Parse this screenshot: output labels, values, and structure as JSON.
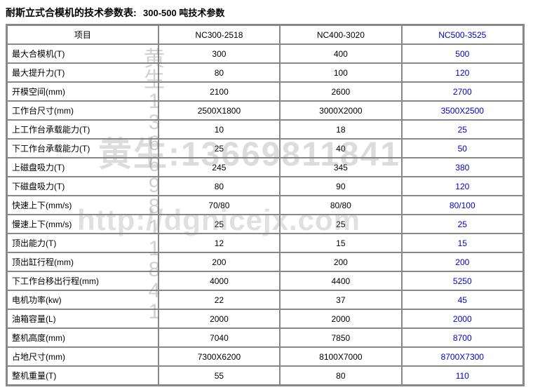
{
  "title": {
    "main": "耐斯立式合模机的技术参数表:",
    "sub": "300-500 吨技术参数"
  },
  "columns": {
    "label": "项目",
    "a": "NC300-2518",
    "b": "NC400-3020",
    "c": "NC500-3525"
  },
  "rows": [
    {
      "label": "最大合模机(T)",
      "a": "300",
      "b": "400",
      "c": "500"
    },
    {
      "label": "最大提升力(T)",
      "a": "80",
      "b": "100",
      "c": "120"
    },
    {
      "label": "开模空间(mm)",
      "a": "2100",
      "b": "2600",
      "c": "2700"
    },
    {
      "label": "工作台尺寸(mm)",
      "a": "2500X1800",
      "b": "3000X2000",
      "c": "3500X2500"
    },
    {
      "label": "上工作台承载能力(T)",
      "a": "10",
      "b": "18",
      "c": "25"
    },
    {
      "label": "下工作台承载能力(T)",
      "a": "25",
      "b": "40",
      "c": "50"
    },
    {
      "label": "上磁盘吸力(T)",
      "a": "245",
      "b": "345",
      "c": "380"
    },
    {
      "label": "下磁盘吸力(T)",
      "a": "80",
      "b": "90",
      "c": "120"
    },
    {
      "label": "快速上下(mm/s)",
      "a": "70/80",
      "b": "80/80",
      "c": "80/100"
    },
    {
      "label": "慢速上下(mm/s)",
      "a": "25",
      "b": "25",
      "c": "25"
    },
    {
      "label": "顶出能力(T)",
      "a": "12",
      "b": "15",
      "c": "15"
    },
    {
      "label": "顶出缸行程(mm)",
      "a": "200",
      "b": "200",
      "c": "200"
    },
    {
      "label": "下工作台移出行程(mm)",
      "a": "4000",
      "b": "4400",
      "c": "5250"
    },
    {
      "label": "电机功率(kw)",
      "a": "22",
      "b": "37",
      "c": "45"
    },
    {
      "label": "油箱容量(L)",
      "a": "2000",
      "b": "2000",
      "c": "2000"
    },
    {
      "label": "整机高度(mm)",
      "a": "7040",
      "b": "7850",
      "c": "8700"
    },
    {
      "label": "占地尺寸(mm)",
      "a": "7300X6200",
      "b": "8100X7000",
      "c": "8700X7300"
    },
    {
      "label": "整机重量(T)",
      "a": "55",
      "b": "80",
      "c": "110"
    }
  ],
  "watermark": {
    "vertical": "黄生13669811841",
    "phone": "黄生:13669811841",
    "url": "http://dgnicejx.com"
  },
  "styling": {
    "highlight_color": "#0000cc",
    "border_color": "#888888",
    "font_size_body": 12,
    "font_size_title": 14,
    "watermark_color": "rgba(120,120,120,0.35)"
  }
}
